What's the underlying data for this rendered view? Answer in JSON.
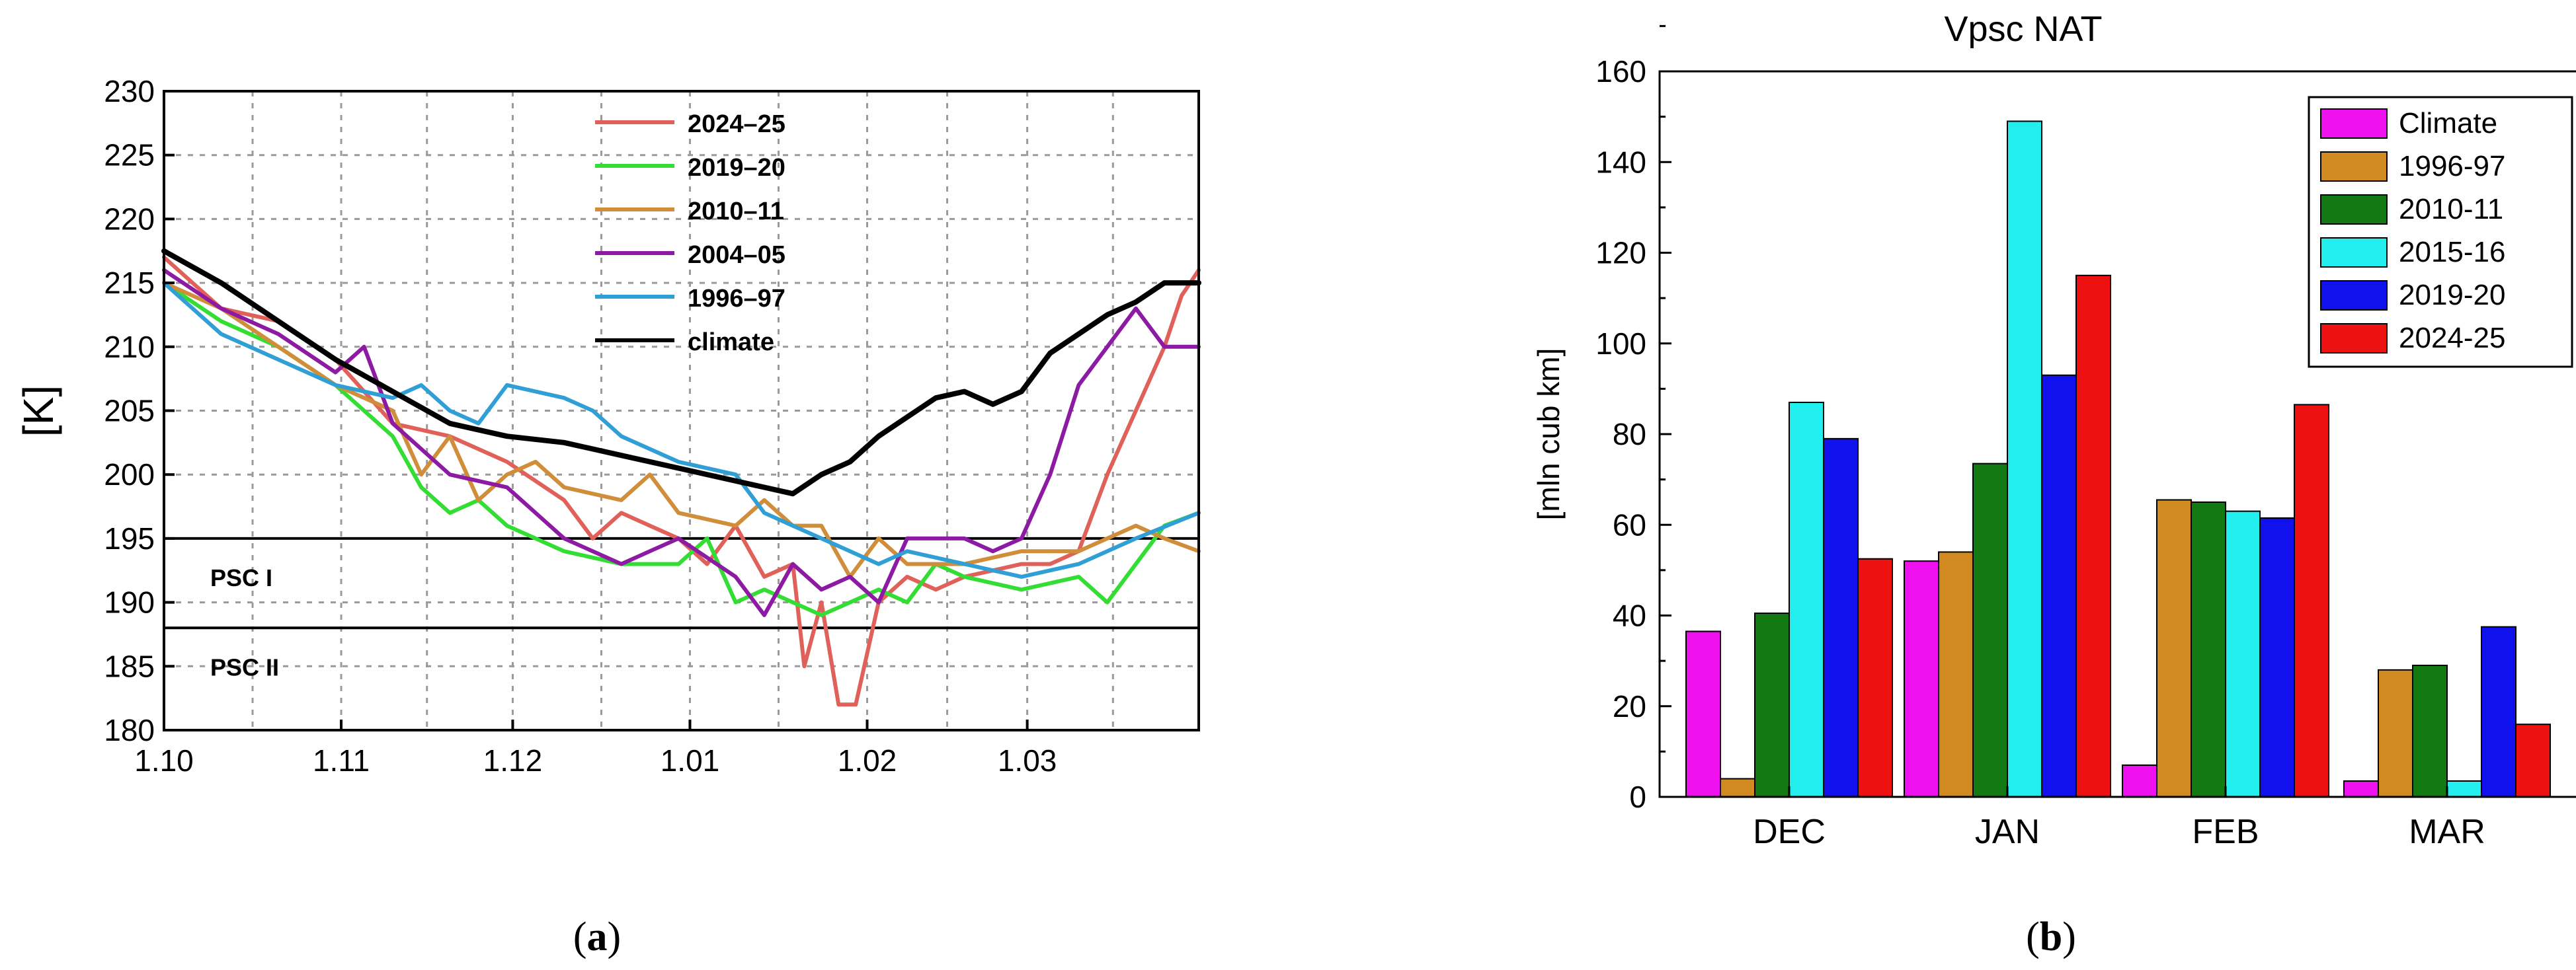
{
  "chart_data": [
    {
      "type": "line",
      "panel_label": "a",
      "ylabel": "[K]",
      "ylim": [
        180,
        230
      ],
      "yticks": [
        "180",
        "185",
        "190",
        "195",
        "200",
        "205",
        "210",
        "215",
        "220",
        "225",
        "230"
      ],
      "xticks": [
        "1.10",
        "1.11",
        "1.12",
        "1.01",
        "1.02",
        "1.03"
      ],
      "x_day_range": [
        0,
        181
      ],
      "grid": true,
      "legend_position": "top-center",
      "thresholds": [
        {
          "label": "PSC I",
          "value": 195
        },
        {
          "label": "PSC II",
          "value": 188
        }
      ],
      "series": [
        {
          "name": "2024–25",
          "color": "#e0605a",
          "x": [
            0,
            10,
            20,
            30,
            40,
            50,
            60,
            70,
            75,
            80,
            85,
            90,
            95,
            100,
            105,
            110,
            112,
            115,
            118,
            121,
            125,
            130,
            135,
            140,
            150,
            155,
            160,
            165,
            170,
            175,
            178,
            181
          ],
          "y": [
            217,
            213,
            212,
            209,
            204,
            203,
            201,
            198,
            195,
            197,
            196,
            195,
            193,
            196,
            192,
            193,
            185,
            190,
            182,
            182,
            190,
            192,
            191,
            192,
            193,
            193,
            194,
            200,
            205,
            210,
            214,
            216
          ]
        },
        {
          "name": "2019–20",
          "color": "#33dd33",
          "x": [
            0,
            10,
            20,
            30,
            40,
            45,
            50,
            55,
            60,
            65,
            70,
            80,
            90,
            95,
            100,
            105,
            110,
            115,
            120,
            125,
            130,
            135,
            140,
            150,
            160,
            165,
            170,
            175,
            181
          ],
          "y": [
            215,
            212,
            210,
            207,
            203,
            199,
            197,
            198,
            196,
            195,
            194,
            193,
            193,
            195,
            190,
            191,
            190,
            189,
            190,
            191,
            190,
            193,
            192,
            191,
            192,
            190,
            193,
            196,
            197
          ]
        },
        {
          "name": "2010–11",
          "color": "#d08d3a",
          "x": [
            0,
            10,
            20,
            30,
            40,
            45,
            50,
            55,
            60,
            65,
            70,
            80,
            85,
            90,
            100,
            105,
            110,
            115,
            120,
            125,
            130,
            140,
            150,
            160,
            170,
            175,
            181
          ],
          "y": [
            215,
            213,
            210,
            207,
            205,
            200,
            203,
            198,
            200,
            201,
            199,
            198,
            200,
            197,
            196,
            198,
            196,
            196,
            192,
            195,
            193,
            193,
            194,
            194,
            196,
            195,
            194
          ]
        },
        {
          "name": "2004–05",
          "color": "#8c1aa3",
          "x": [
            0,
            10,
            20,
            30,
            35,
            40,
            50,
            60,
            65,
            70,
            80,
            85,
            90,
            100,
            105,
            110,
            115,
            120,
            125,
            130,
            140,
            145,
            150,
            155,
            160,
            165,
            170,
            175,
            181
          ],
          "y": [
            216,
            213,
            211,
            208,
            210,
            204,
            200,
            199,
            197,
            195,
            193,
            194,
            195,
            192,
            189,
            193,
            191,
            192,
            190,
            195,
            195,
            194,
            195,
            200,
            207,
            210,
            213,
            210,
            210
          ]
        },
        {
          "name": "1996–97",
          "color": "#2f9fd6",
          "x": [
            0,
            10,
            20,
            30,
            40,
            45,
            50,
            55,
            60,
            70,
            75,
            80,
            90,
            100,
            105,
            110,
            115,
            120,
            125,
            130,
            140,
            150,
            160,
            170,
            181
          ],
          "y": [
            215,
            211,
            209,
            207,
            206,
            207,
            205,
            204,
            207,
            206,
            205,
            203,
            201,
            200,
            197,
            196,
            195,
            194,
            193,
            194,
            193,
            192,
            193,
            195,
            197
          ]
        },
        {
          "name": "climate",
          "color": "#000000",
          "x": [
            0,
            10,
            20,
            30,
            40,
            50,
            60,
            70,
            80,
            90,
            100,
            105,
            110,
            115,
            120,
            125,
            130,
            135,
            140,
            145,
            150,
            155,
            160,
            165,
            170,
            175,
            181
          ],
          "y": [
            217.5,
            215,
            212,
            209,
            206.5,
            204,
            203,
            202.5,
            201.5,
            200.5,
            199.5,
            199,
            198.5,
            200,
            201,
            203,
            204.5,
            206,
            206.5,
            205.5,
            206.5,
            209.5,
            211,
            212.5,
            213.5,
            215,
            215
          ]
        }
      ]
    },
    {
      "type": "bar",
      "panel_label": "b",
      "title": "Vpsc NAT",
      "ylabel": "[mln cub km]",
      "ylim": [
        0,
        160
      ],
      "yticks": [
        "0",
        "20",
        "40",
        "60",
        "80",
        "100",
        "120",
        "140",
        "160"
      ],
      "categories": [
        "DEC",
        "JAN",
        "FEB",
        "MAR"
      ],
      "legend_position": "top-right",
      "series": [
        {
          "name": "Climate",
          "color": "#ee11ee",
          "values": [
            36.5,
            52,
            7,
            3.5
          ]
        },
        {
          "name": "1996-97",
          "color": "#d08a20",
          "values": [
            4,
            54,
            65.5,
            28
          ]
        },
        {
          "name": "2010-11",
          "color": "#137a13",
          "values": [
            40.5,
            73.5,
            65,
            29
          ]
        },
        {
          "name": "2015-16",
          "color": "#22eeee",
          "values": [
            87,
            149,
            63,
            3.5
          ]
        },
        {
          "name": "2019-20",
          "color": "#1111ee",
          "values": [
            79,
            93,
            61.5,
            37.5
          ]
        },
        {
          "name": "2024-25",
          "color": "#ee1111",
          "values": [
            52.5,
            115,
            86.5,
            16
          ]
        }
      ]
    }
  ]
}
